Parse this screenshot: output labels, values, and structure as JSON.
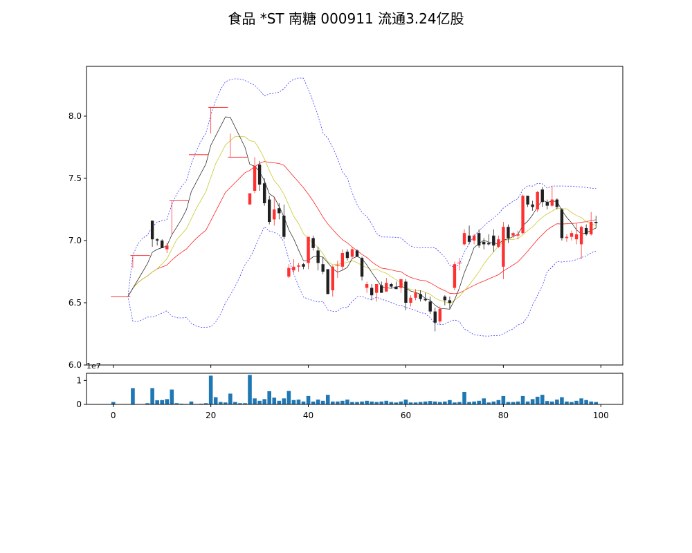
{
  "chart_data": {
    "type": "candlestick",
    "title": "食品 *ST 南糖 000911 流通3.24亿股",
    "colors": {
      "up": "#ff3030",
      "down": "#202020",
      "ma_fast": "#333333",
      "ma_mid": "#c8c830",
      "ma_slow": "#ff2020",
      "boll_band": "#3a3aff",
      "volume": "#1f77b4"
    },
    "price_axis": {
      "ylim": [
        6.0,
        8.4
      ],
      "ticks": [
        "6.0",
        "6.5",
        "7.0",
        "7.5",
        "8.0"
      ]
    },
    "volume_axis": {
      "ylim": [
        0,
        1.3
      ],
      "ticks": [
        "0",
        "1"
      ],
      "offset_label": "1e7"
    },
    "x_axis": {
      "xlim": [
        -5.5,
        104.5
      ],
      "ticks": [
        "0",
        "20",
        "40",
        "60",
        "80",
        "100"
      ]
    },
    "ohlc": [
      [
        6.55,
        6.55,
        6.55,
        6.55
      ],
      [
        6.55,
        6.55,
        6.55,
        6.55
      ],
      [
        6.55,
        6.55,
        6.55,
        6.55
      ],
      [
        6.55,
        6.55,
        6.55,
        6.55
      ],
      [
        6.88,
        6.88,
        6.78,
        6.88
      ],
      [
        6.88,
        6.88,
        6.88,
        6.88
      ],
      [
        6.88,
        6.88,
        6.88,
        6.88
      ],
      [
        6.88,
        6.88,
        6.88,
        6.88
      ],
      [
        7.16,
        7.16,
        6.95,
        7.01
      ],
      [
        7.01,
        7.02,
        6.96,
        7.0
      ],
      [
        7.0,
        7.01,
        6.94,
        6.94
      ],
      [
        6.93,
        6.98,
        6.9,
        6.96
      ],
      [
        7.32,
        7.32,
        7.05,
        7.32
      ],
      [
        7.32,
        7.32,
        7.32,
        7.32
      ],
      [
        7.32,
        7.32,
        7.32,
        7.32
      ],
      [
        7.32,
        7.32,
        7.32,
        7.32
      ],
      [
        7.69,
        7.69,
        7.69,
        7.69
      ],
      [
        7.69,
        7.69,
        7.69,
        7.69
      ],
      [
        7.69,
        7.69,
        7.69,
        7.69
      ],
      [
        7.69,
        7.69,
        7.69,
        7.69
      ],
      [
        8.07,
        8.07,
        7.86,
        8.07
      ],
      [
        8.07,
        8.07,
        8.07,
        8.07
      ],
      [
        8.07,
        8.07,
        8.07,
        8.07
      ],
      [
        8.07,
        8.07,
        8.07,
        8.07
      ],
      [
        7.67,
        7.86,
        7.67,
        7.67
      ],
      [
        7.67,
        7.67,
        7.67,
        7.67
      ],
      [
        7.67,
        7.67,
        7.67,
        7.67
      ],
      [
        7.67,
        7.67,
        7.67,
        7.67
      ],
      [
        7.29,
        7.38,
        7.29,
        7.38
      ],
      [
        7.4,
        7.67,
        7.38,
        7.6
      ],
      [
        7.61,
        7.64,
        7.4,
        7.45
      ],
      [
        7.46,
        7.5,
        7.28,
        7.3
      ],
      [
        7.33,
        7.36,
        7.13,
        7.15
      ],
      [
        7.17,
        7.35,
        7.12,
        7.25
      ],
      [
        7.26,
        7.3,
        7.17,
        7.22
      ],
      [
        7.2,
        7.29,
        7.01,
        7.03
      ],
      [
        6.71,
        6.81,
        6.7,
        6.78
      ],
      [
        6.76,
        6.85,
        6.74,
        6.79
      ],
      [
        6.79,
        6.82,
        6.75,
        6.8
      ],
      [
        6.81,
        6.82,
        6.77,
        6.79
      ],
      [
        6.82,
        7.03,
        6.77,
        7.03
      ],
      [
        7.02,
        7.04,
        6.92,
        6.94
      ],
      [
        6.92,
        6.95,
        6.76,
        6.82
      ],
      [
        6.81,
        6.87,
        6.73,
        6.75
      ],
      [
        6.77,
        6.77,
        6.57,
        6.57
      ],
      [
        6.6,
        6.8,
        6.55,
        6.79
      ],
      [
        6.8,
        6.84,
        6.7,
        6.8
      ],
      [
        6.79,
        6.93,
        6.76,
        6.9
      ],
      [
        6.91,
        6.93,
        6.84,
        6.86
      ],
      [
        6.87,
        6.95,
        6.85,
        6.93
      ],
      [
        6.92,
        6.93,
        6.87,
        6.87
      ],
      [
        6.86,
        6.87,
        6.68,
        6.71
      ],
      [
        6.62,
        6.67,
        6.58,
        6.65
      ],
      [
        6.62,
        6.65,
        6.52,
        6.56
      ],
      [
        6.58,
        6.65,
        6.51,
        6.65
      ],
      [
        6.64,
        6.67,
        6.58,
        6.58
      ],
      [
        6.59,
        6.7,
        6.59,
        6.66
      ],
      [
        6.65,
        6.66,
        6.62,
        6.63
      ],
      [
        6.63,
        6.67,
        6.61,
        6.61
      ],
      [
        6.62,
        6.68,
        6.58,
        6.69
      ],
      [
        6.67,
        6.69,
        6.44,
        6.5
      ],
      [
        6.5,
        6.56,
        6.47,
        6.54
      ],
      [
        6.54,
        6.61,
        6.52,
        6.58
      ],
      [
        6.57,
        6.6,
        6.51,
        6.53
      ],
      [
        6.53,
        6.58,
        6.51,
        6.52
      ],
      [
        6.51,
        6.55,
        6.41,
        6.43
      ],
      [
        6.43,
        6.46,
        6.27,
        6.34
      ],
      [
        6.35,
        6.47,
        6.33,
        6.45
      ],
      [
        6.55,
        6.56,
        6.48,
        6.52
      ],
      [
        6.52,
        6.55,
        6.45,
        6.5
      ],
      [
        6.62,
        6.83,
        6.6,
        6.81
      ],
      [
        6.82,
        6.86,
        6.76,
        6.82
      ],
      [
        6.97,
        7.09,
        6.96,
        7.06
      ],
      [
        7.04,
        7.12,
        6.97,
        6.99
      ],
      [
        7.0,
        7.05,
        6.97,
        7.04
      ],
      [
        7.06,
        7.09,
        6.94,
        6.96
      ],
      [
        6.99,
        7.02,
        6.93,
        6.97
      ],
      [
        6.98,
        7.05,
        6.96,
        6.97
      ],
      [
        7.04,
        7.09,
        6.91,
        6.96
      ],
      [
        6.95,
        7.04,
        6.94,
        7.01
      ],
      [
        6.79,
        7.15,
        6.69,
        7.11
      ],
      [
        7.11,
        7.13,
        6.98,
        7.02
      ],
      [
        7.04,
        7.07,
        7.02,
        7.06
      ],
      [
        7.04,
        7.08,
        7.01,
        7.05
      ],
      [
        7.06,
        7.37,
        7.05,
        7.36
      ],
      [
        7.36,
        7.36,
        7.27,
        7.29
      ],
      [
        7.29,
        7.32,
        7.24,
        7.27
      ],
      [
        7.25,
        7.4,
        7.23,
        7.39
      ],
      [
        7.41,
        7.43,
        7.27,
        7.31
      ],
      [
        7.31,
        7.33,
        7.25,
        7.28
      ],
      [
        7.28,
        7.44,
        7.27,
        7.33
      ],
      [
        7.33,
        7.34,
        7.25,
        7.27
      ],
      [
        7.25,
        7.26,
        7.0,
        7.02
      ],
      [
        7.02,
        7.05,
        6.99,
        7.03
      ],
      [
        7.03,
        7.08,
        7.0,
        7.06
      ],
      [
        7.01,
        7.14,
        6.97,
        7.05
      ],
      [
        6.97,
        7.12,
        6.85,
        7.11
      ],
      [
        7.1,
        7.13,
        7.04,
        7.05
      ],
      [
        7.05,
        7.23,
        7.04,
        7.15
      ],
      [
        7.15,
        7.2,
        7.1,
        7.14
      ]
    ],
    "volume_1e7": [
      0.1,
      0.0,
      0.0,
      0.0,
      0.68,
      0.0,
      0.0,
      0.05,
      0.68,
      0.17,
      0.18,
      0.22,
      0.62,
      0.05,
      0.03,
      0.02,
      0.12,
      0.02,
      0.03,
      0.05,
      1.2,
      0.3,
      0.1,
      0.08,
      0.45,
      0.1,
      0.05,
      0.05,
      1.23,
      0.25,
      0.15,
      0.22,
      0.55,
      0.28,
      0.15,
      0.25,
      0.56,
      0.18,
      0.2,
      0.12,
      0.35,
      0.12,
      0.2,
      0.15,
      0.4,
      0.12,
      0.12,
      0.15,
      0.2,
      0.1,
      0.1,
      0.12,
      0.15,
      0.12,
      0.1,
      0.12,
      0.15,
      0.1,
      0.08,
      0.12,
      0.2,
      0.08,
      0.08,
      0.1,
      0.12,
      0.14,
      0.12,
      0.1,
      0.12,
      0.18,
      0.08,
      0.1,
      0.52,
      0.1,
      0.12,
      0.15,
      0.25,
      0.08,
      0.12,
      0.18,
      0.35,
      0.1,
      0.1,
      0.12,
      0.35,
      0.12,
      0.22,
      0.32,
      0.4,
      0.14,
      0.12,
      0.2,
      0.3,
      0.12,
      0.1,
      0.15,
      0.25,
      0.18,
      0.12,
      0.1
    ]
  }
}
